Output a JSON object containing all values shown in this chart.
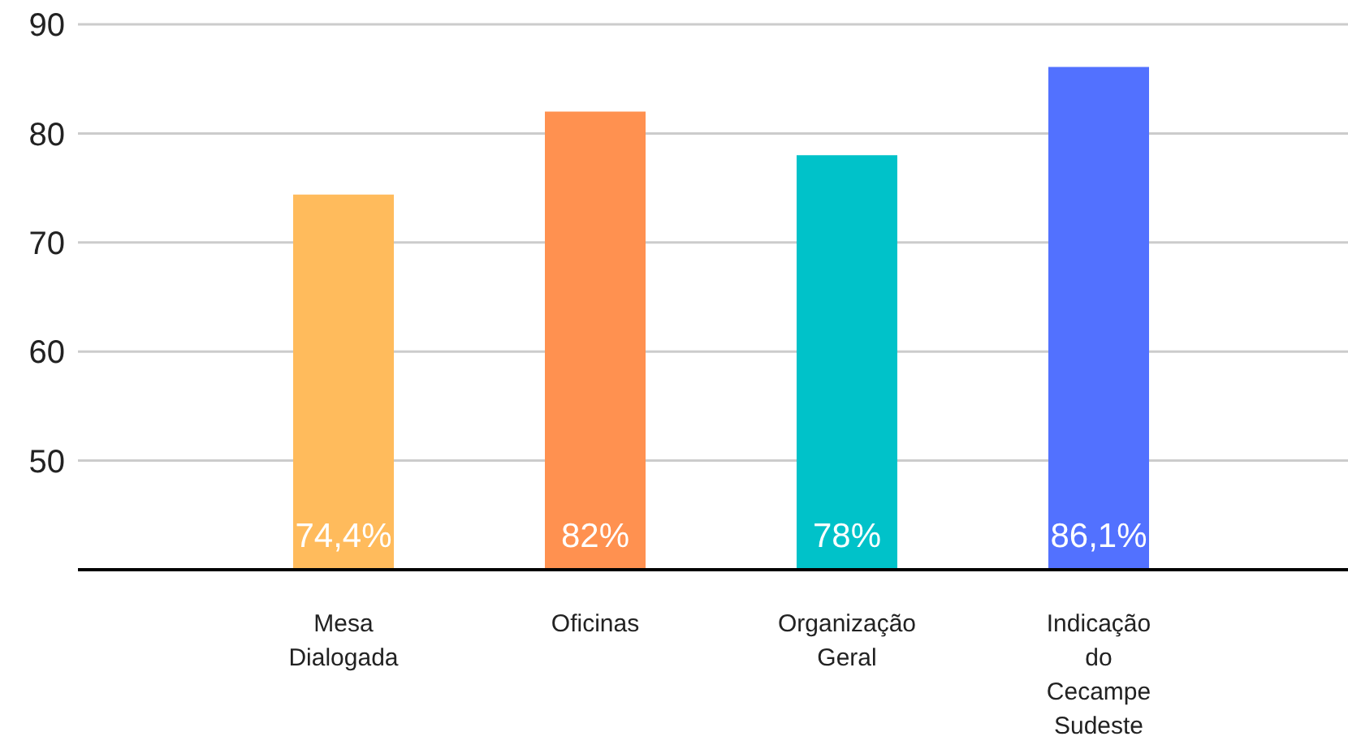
{
  "chart_data": {
    "type": "bar",
    "categories": [
      "Mesa Dialogada",
      "Oficinas",
      "Organização Geral",
      "Indicação do Cecampe Sudeste"
    ],
    "values": [
      74.4,
      82,
      78,
      86.1
    ],
    "colors": [
      "#ffbb5c",
      "#ff9150",
      "#00c2c9",
      "#5271ff"
    ],
    "value_labels": [
      "74,4%",
      "82%",
      "78%",
      "86,1%"
    ],
    "ylim": [
      40,
      90
    ],
    "yticks": [
      50,
      60,
      70,
      80,
      90
    ],
    "grid": "y"
  }
}
